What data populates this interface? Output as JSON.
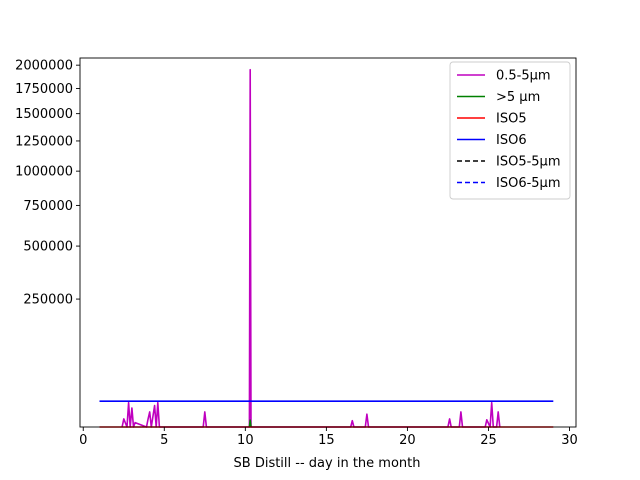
{
  "chart_data": {
    "type": "line",
    "title": "",
    "xlabel": "SB Distill -- day in the month",
    "ylabel": "",
    "xlim": [
      -0.2,
      30.4
    ],
    "ylim": [
      0,
      2080000
    ],
    "yscale": "sqrt",
    "x_ticks": [
      0,
      5,
      10,
      15,
      20,
      25,
      30
    ],
    "y_ticks": [
      250000,
      500000,
      750000,
      1000000,
      1250000,
      1500000,
      1750000,
      2000000
    ],
    "legend_position": "upper right",
    "grid": false,
    "series": [
      {
        "name": "0.5-5µm",
        "color": "#bf00bf",
        "style": "solid",
        "x": [
          2.4,
          2.5,
          2.7,
          2.8,
          2.9,
          3.0,
          3.1,
          3.2,
          3.9,
          4.0,
          4.1,
          4.2,
          4.4,
          4.5,
          4.6,
          4.7,
          7.4,
          7.5,
          7.6,
          10.25,
          10.3,
          10.35,
          16.5,
          16.6,
          16.7,
          17.4,
          17.5,
          17.6,
          22.5,
          22.6,
          22.7,
          23.2,
          23.3,
          23.4,
          24.8,
          24.9,
          25.1,
          25.2,
          25.3,
          25.5,
          25.6,
          25.7
        ],
        "y": [
          0,
          1000,
          0,
          9000,
          0,
          5500,
          0,
          300,
          0,
          1000,
          3500,
          0,
          7000,
          0,
          9000,
          0,
          0,
          3500,
          0,
          0,
          1950000,
          0,
          0,
          600,
          0,
          0,
          2500,
          0,
          0,
          1000,
          0,
          0,
          3500,
          0,
          0,
          800,
          0,
          9000,
          0,
          0,
          3500,
          0
        ]
      },
      {
        "name": ">5 µm",
        "color": "#008000",
        "style": "solid",
        "x": [
          10.25,
          10.3,
          10.35
        ],
        "y": [
          0,
          700,
          0
        ]
      },
      {
        "name": "ISO5",
        "color": "#ff0000",
        "style": "solid",
        "x": [
          1,
          29
        ],
        "y": [
          0,
          0
        ]
      },
      {
        "name": "ISO6",
        "color": "#0000ff",
        "style": "solid",
        "x": [
          1,
          29
        ],
        "y": [
          10200,
          10200
        ]
      },
      {
        "name": "ISO5-5µm",
        "color": "#000000",
        "style": "dashed",
        "x": [],
        "y": []
      },
      {
        "name": "ISO6-5µm",
        "color": "#0000ff",
        "style": "dashed",
        "x": [],
        "y": []
      }
    ]
  }
}
